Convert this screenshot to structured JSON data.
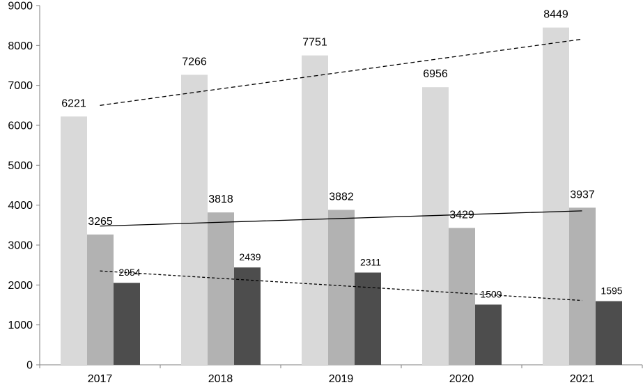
{
  "chart_data": {
    "type": "bar",
    "title": "",
    "xlabel": "",
    "ylabel": "",
    "categories": [
      "2017",
      "2018",
      "2019",
      "2020",
      "2021"
    ],
    "ylim": [
      0,
      9000
    ],
    "yticks": [
      0,
      1000,
      2000,
      3000,
      4000,
      5000,
      6000,
      7000,
      8000,
      9000
    ],
    "grid": false,
    "legend": "none",
    "series": [
      {
        "values": [
          6221,
          7266,
          7751,
          6956,
          8449
        ],
        "color": "#d9d9d9"
      },
      {
        "values": [
          3265,
          3818,
          3882,
          3429,
          3937
        ],
        "color": "#b2b2b2"
      },
      {
        "values": [
          2054,
          2439,
          2311,
          1509,
          1595
        ],
        "color": "#4d4d4d"
      }
    ],
    "trendlines": [
      {
        "series": 0,
        "type": "linear",
        "style": "dashed",
        "color": "#000000"
      },
      {
        "series": 1,
        "type": "linear",
        "style": "solid",
        "color": "#000000"
      },
      {
        "series": 2,
        "type": "linear",
        "style": "dotted",
        "color": "#000000"
      }
    ]
  }
}
